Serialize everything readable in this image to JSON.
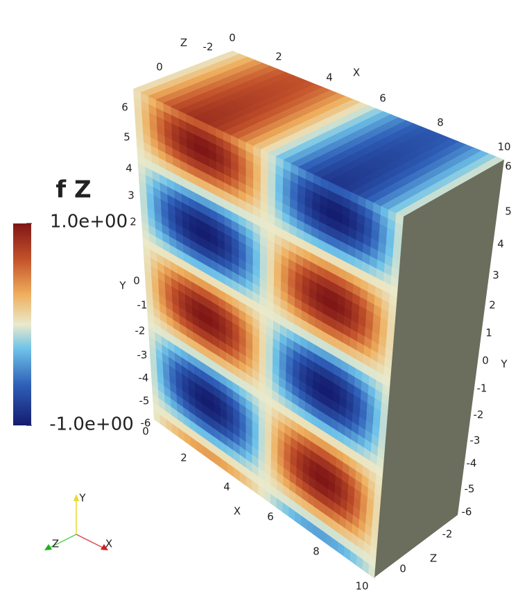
{
  "legend": {
    "title": "f Z",
    "max_label": "1.0e+00",
    "min_label": "-1.0e+00"
  },
  "axes": {
    "top_x": [
      "0",
      "2",
      "4",
      "X",
      "6",
      "8",
      "10"
    ],
    "top_z": [
      "Z",
      "-2",
      "0"
    ],
    "left_y": [
      "6",
      "5",
      "4",
      "3",
      "2",
      "Y",
      "0",
      "-1",
      "-2",
      "-3",
      "-4",
      "-5",
      "-6"
    ],
    "bottom_x": [
      "0",
      "2",
      "4",
      "X",
      "6",
      "8",
      "10"
    ],
    "right_y": [
      "6",
      "5",
      "4",
      "3",
      "2",
      "1",
      "0",
      "Y",
      "-1",
      "-2",
      "-3",
      "-4",
      "-5",
      "-6"
    ],
    "bottom_z": [
      "-2",
      "Z",
      "0"
    ]
  },
  "orientation": {
    "y": "Y",
    "x": "X",
    "z": "Z"
  }
}
